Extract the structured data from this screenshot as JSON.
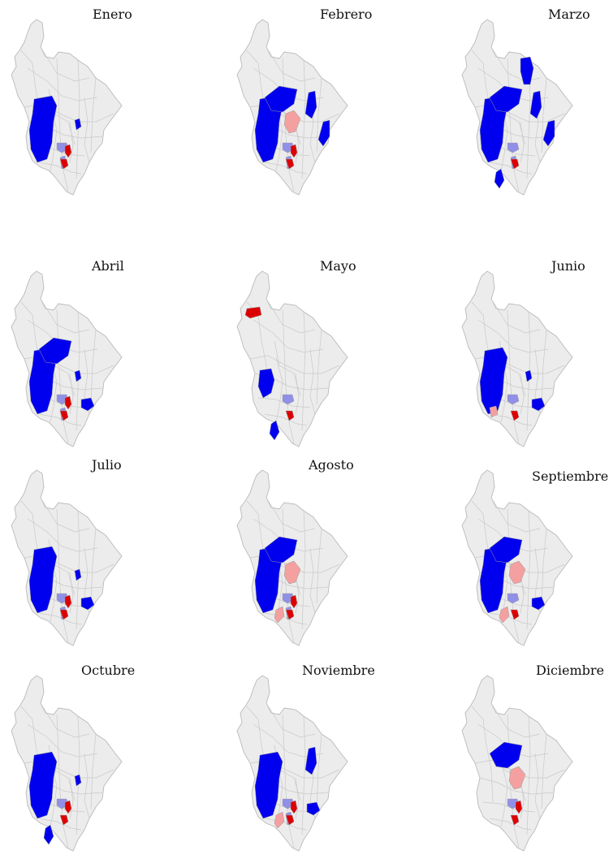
{
  "colors": {
    "strong_blue": "#0000ee",
    "light_blue": "#9090e8",
    "strong_red": "#dd0000",
    "light_red": "#f4a0a0",
    "base": "#ececec"
  },
  "months": [
    {
      "title": "Enero",
      "highlights": [
        [
          "sb",
          "west"
        ],
        [
          "sb",
          "ne-small"
        ],
        [
          "lb",
          "center-a"
        ],
        [
          "lb",
          "center-b"
        ],
        [
          "sr",
          "center"
        ],
        [
          "sr",
          "center-south"
        ]
      ]
    },
    {
      "title": "Febrero",
      "highlights": [
        [
          "sb",
          "west"
        ],
        [
          "sb",
          "north"
        ],
        [
          "sb",
          "ne"
        ],
        [
          "sb",
          "east"
        ],
        [
          "lr",
          "center-north"
        ],
        [
          "lb",
          "center-a"
        ],
        [
          "lb",
          "center-b"
        ],
        [
          "sr",
          "center"
        ],
        [
          "sr",
          "center-south"
        ]
      ]
    },
    {
      "title": "Marzo",
      "highlights": [
        [
          "sb",
          "west"
        ],
        [
          "sb",
          "north"
        ],
        [
          "sb",
          "far-north"
        ],
        [
          "sb",
          "ne"
        ],
        [
          "sb",
          "east"
        ],
        [
          "sb",
          "south-west"
        ],
        [
          "lb",
          "center-a"
        ],
        [
          "lb",
          "center-b"
        ],
        [
          "sr",
          "center-south"
        ]
      ]
    },
    {
      "title": "Abril",
      "highlights": [
        [
          "sb",
          "west"
        ],
        [
          "sb",
          "north"
        ],
        [
          "sb",
          "ne-small"
        ],
        [
          "sb",
          "south-east"
        ],
        [
          "lb",
          "center-a"
        ],
        [
          "lb",
          "center-b"
        ],
        [
          "sr",
          "center"
        ],
        [
          "sr",
          "center-south"
        ]
      ]
    },
    {
      "title": "Mayo",
      "highlights": [
        [
          "sr",
          "uraba"
        ],
        [
          "sb",
          "west-narrow"
        ],
        [
          "sb",
          "south-west"
        ],
        [
          "lb",
          "center-a"
        ],
        [
          "sr",
          "center-south"
        ]
      ]
    },
    {
      "title": "Junio",
      "highlights": [
        [
          "sb",
          "west"
        ],
        [
          "sb",
          "ne-small"
        ],
        [
          "sb",
          "south-east"
        ],
        [
          "lb",
          "center-a"
        ],
        [
          "lr",
          "south-west-small"
        ],
        [
          "sr",
          "center-south"
        ]
      ]
    },
    {
      "title": "Julio",
      "highlights": [
        [
          "sb",
          "west"
        ],
        [
          "sb",
          "ne-small"
        ],
        [
          "sb",
          "south-east"
        ],
        [
          "lb",
          "center-a"
        ],
        [
          "lb",
          "center-b"
        ],
        [
          "sr",
          "center"
        ],
        [
          "sr",
          "center-south"
        ]
      ]
    },
    {
      "title": "Agosto",
      "highlights": [
        [
          "sb",
          "west"
        ],
        [
          "sb",
          "north"
        ],
        [
          "lr",
          "center-north"
        ],
        [
          "lr",
          "west-mid"
        ],
        [
          "lb",
          "center-a"
        ],
        [
          "lb",
          "center-b"
        ],
        [
          "sr",
          "center"
        ],
        [
          "sr",
          "center-south"
        ]
      ]
    },
    {
      "title": "Septiembre",
      "highlights": [
        [
          "sb",
          "west"
        ],
        [
          "sb",
          "north"
        ],
        [
          "sb",
          "south-east"
        ],
        [
          "lr",
          "center-north"
        ],
        [
          "lr",
          "west-mid"
        ],
        [
          "lb",
          "center-a"
        ],
        [
          "sr",
          "center-south"
        ]
      ]
    },
    {
      "title": "Octubre",
      "highlights": [
        [
          "sb",
          "west"
        ],
        [
          "sb",
          "ne-small"
        ],
        [
          "sb",
          "south-west"
        ],
        [
          "lb",
          "center-a"
        ],
        [
          "sr",
          "center"
        ],
        [
          "sr",
          "center-south"
        ]
      ]
    },
    {
      "title": "Noviembre",
      "highlights": [
        [
          "sb",
          "west"
        ],
        [
          "sb",
          "ne"
        ],
        [
          "sb",
          "south-east"
        ],
        [
          "lr",
          "west-mid"
        ],
        [
          "lb",
          "center-a"
        ],
        [
          "lb",
          "center-b"
        ],
        [
          "sr",
          "center"
        ],
        [
          "sr",
          "center-south"
        ]
      ]
    },
    {
      "title": "Diciembre",
      "highlights": [
        [
          "sb",
          "north"
        ],
        [
          "lr",
          "center-north"
        ],
        [
          "lb",
          "center-a"
        ],
        [
          "sr",
          "center"
        ],
        [
          "sr",
          "center-south"
        ]
      ]
    }
  ]
}
